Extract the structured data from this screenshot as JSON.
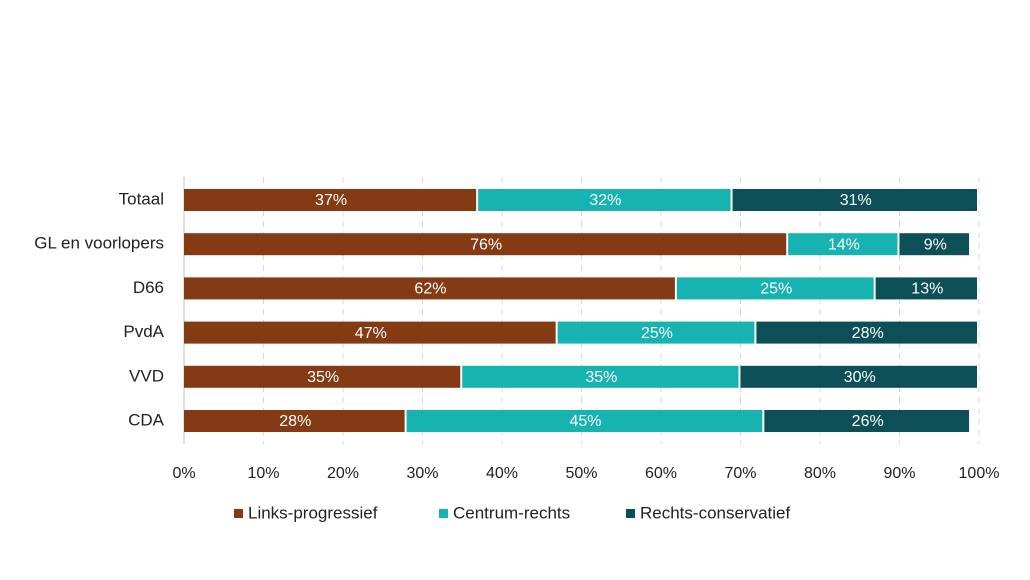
{
  "chart_data": {
    "type": "bar",
    "orientation": "horizontal",
    "stacked": true,
    "categories": [
      "Totaal",
      "GL en voorlopers",
      "D66",
      "PvdA",
      "VVD",
      "CDA"
    ],
    "series": [
      {
        "name": "Links-progressief",
        "color": "#843b13",
        "values": [
          37,
          76,
          62,
          47,
          35,
          28
        ]
      },
      {
        "name": "Centrum-rechts",
        "color": "#17b3b0",
        "values": [
          32,
          14,
          25,
          25,
          35,
          45
        ]
      },
      {
        "name": "Rechts-conservatief",
        "color": "#0c4f56",
        "values": [
          31,
          9,
          13,
          28,
          30,
          26
        ]
      }
    ],
    "value_suffix": "%",
    "xlim": [
      0,
      100
    ],
    "xticks": [
      "0%",
      "10%",
      "20%",
      "30%",
      "40%",
      "50%",
      "60%",
      "70%",
      "80%",
      "90%",
      "100%"
    ],
    "grid": true,
    "legend": "bottom"
  }
}
